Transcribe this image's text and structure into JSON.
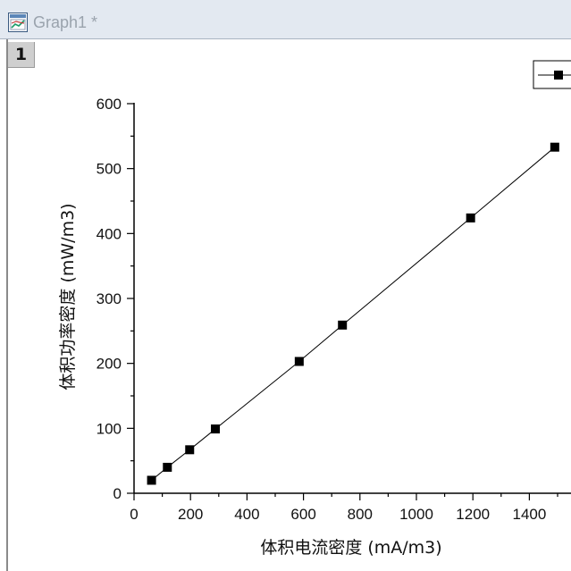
{
  "window": {
    "title": "Graph1 *",
    "layer_label": "1",
    "icon": "graph-window-icon"
  },
  "chart_data": {
    "type": "line",
    "title": "",
    "xlabel": "体积电流密度 (mA/m3)",
    "ylabel": "体积功率密度 (mW/m3)",
    "xlim": [
      0,
      1500
    ],
    "ylim": [
      0,
      600
    ],
    "xticks": [
      0,
      200,
      400,
      600,
      800,
      1000,
      1200,
      1400
    ],
    "yticks": [
      0,
      100,
      200,
      300,
      400,
      500,
      600
    ],
    "x_minor_step": 100,
    "y_minor_step": 50,
    "legend": "top-right",
    "marker": "square",
    "line_color": "#000000",
    "marker_color": "#000000",
    "series": [
      {
        "x": [
          62,
          118,
          197,
          288,
          585,
          738,
          1192,
          1490
        ],
        "y": [
          20,
          40,
          67,
          99,
          203,
          259,
          424,
          533
        ]
      }
    ]
  }
}
